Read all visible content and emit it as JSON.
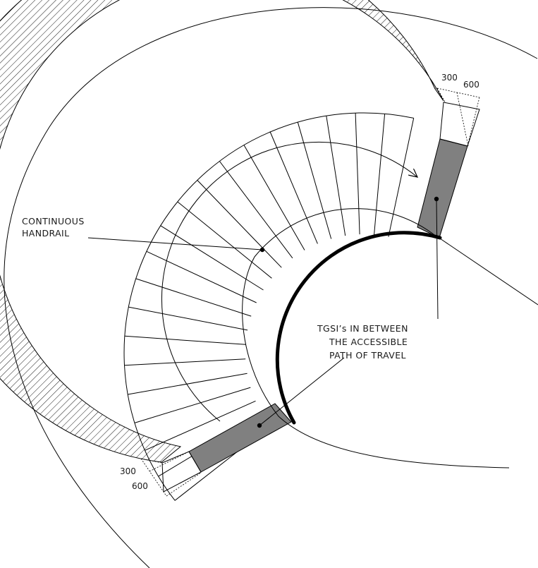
{
  "labels": {
    "handrail_line1": "CONTINUOUS",
    "handrail_line2": "HANDRAIL",
    "tgsi_line1": "TGSI’s IN BETWEEN",
    "tgsi_line2": "THE ACCESSIBLE",
    "tgsi_line3": "PATH OF TRAVEL"
  },
  "dimensions": {
    "top_inner": "300",
    "top_outer": "600",
    "bottom_inner": "300",
    "bottom_outer": "600"
  },
  "colors": {
    "line": "#000000",
    "tgsi_fill": "#808080",
    "handrail": "#000000"
  }
}
